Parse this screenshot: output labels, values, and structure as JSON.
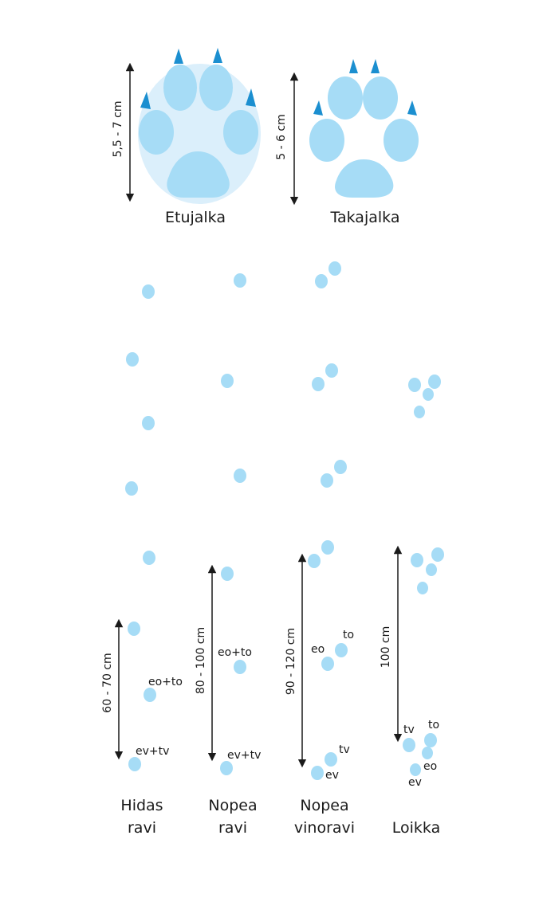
{
  "colors": {
    "pad": "#a6dcf6",
    "palm": "#dbeffb",
    "claw": "#1b8fd0",
    "arrow": "#1a1a1a",
    "text": "#1a1a1a"
  },
  "paws": {
    "front": {
      "label": "Etujalka",
      "size": "5,5 - 7 cm"
    },
    "hind": {
      "label": "Takajalka",
      "size": "5 - 6 cm"
    }
  },
  "gaits": [
    {
      "label_line1": "Hidas",
      "label_line2": "ravi",
      "distance": "60 - 70 cm",
      "annotations": [
        "eo+to",
        "ev+tv"
      ]
    },
    {
      "label_line1": "Nopea",
      "label_line2": "ravi",
      "distance": "80 - 100 cm",
      "annotations": [
        "eo+to",
        "ev+tv"
      ]
    },
    {
      "label_line1": "Nopea",
      "label_line2": "vinoravi",
      "distance": "90 - 120 cm",
      "annotations": [
        "eo",
        "to",
        "tv",
        "ev"
      ]
    },
    {
      "label_line1": "Loikka",
      "label_line2": "",
      "distance": "100 cm",
      "annotations": [
        "tv",
        "to",
        "eo",
        "ev"
      ]
    }
  ]
}
